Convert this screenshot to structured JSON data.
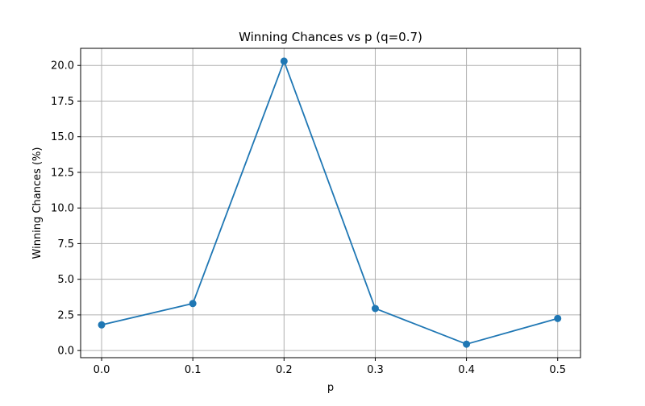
{
  "chart_data": {
    "type": "line",
    "title": "Winning Chances vs p (q=0.7)",
    "xlabel": "p",
    "ylabel": "Winning Chances (%)",
    "x": [
      0.0,
      0.1,
      0.2,
      0.3,
      0.4,
      0.5
    ],
    "series": [
      {
        "values": [
          1.8,
          3.3,
          20.3,
          2.95,
          0.45,
          2.25
        ],
        "color": "#1f77b4",
        "marker": "circle"
      }
    ],
    "xlim": [
      -0.023,
      0.525
    ],
    "ylim": [
      -0.5,
      21.2
    ],
    "xticks": [
      0.0,
      0.1,
      0.2,
      0.3,
      0.4,
      0.5
    ],
    "xtick_labels": [
      "0.0",
      "0.1",
      "0.2",
      "0.3",
      "0.4",
      "0.5"
    ],
    "yticks": [
      0.0,
      2.5,
      5.0,
      7.5,
      10.0,
      12.5,
      15.0,
      17.5,
      20.0
    ],
    "ytick_labels": [
      "0.0",
      "2.5",
      "5.0",
      "7.5",
      "10.0",
      "12.5",
      "15.0",
      "17.5",
      "20.0"
    ],
    "grid": true,
    "legend": "none"
  }
}
